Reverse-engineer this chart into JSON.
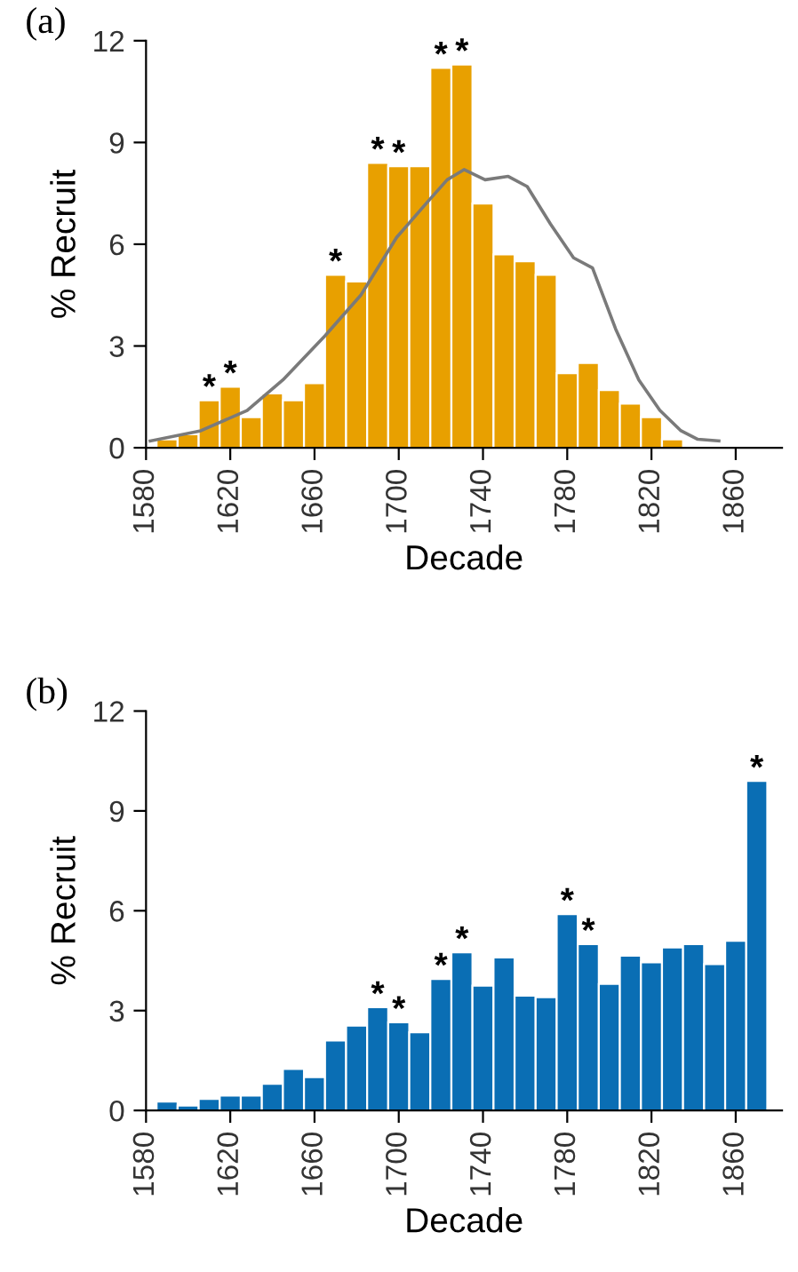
{
  "chart_data": [
    {
      "type": "histogram",
      "title": "(a)",
      "xlabel": "Decade",
      "ylabel": "% Recruit",
      "bins": [
        1585,
        1595,
        1605,
        1615,
        1625,
        1635,
        1645,
        1655,
        1665,
        1675,
        1685,
        1695,
        1705,
        1715,
        1725,
        1735,
        1745,
        1755,
        1765,
        1775,
        1785,
        1795,
        1805,
        1815,
        1825,
        1835
      ],
      "series": [
        {
          "color": "#e8a000",
          "values": [
            0.25,
            0.4,
            1.4,
            1.8,
            0.9,
            1.6,
            1.4,
            1.9,
            5.1,
            4.9,
            8.4,
            8.3,
            8.3,
            11.2,
            11.3,
            7.2,
            5.7,
            5.5,
            5.1,
            2.2,
            2.5,
            1.7,
            1.3,
            0.9,
            0.25
          ]
        },
        {
          "type": "line",
          "color": "#7a7a7a",
          "x": [
            1582,
            1606,
            1628,
            1645,
            1665,
            1682,
            1699,
            1713,
            1723,
            1731,
            1741,
            1752,
            1761,
            1772,
            1783,
            1792,
            1803,
            1814,
            1824,
            1834,
            1842,
            1852
          ],
          "values": [
            0.2,
            0.5,
            1.1,
            2.0,
            3.3,
            4.5,
            6.2,
            7.2,
            7.9,
            8.2,
            7.9,
            8.0,
            7.7,
            6.6,
            5.6,
            5.3,
            3.5,
            2.0,
            1.1,
            0.5,
            0.25,
            0.2
          ]
        }
      ],
      "xlim": [
        1580,
        1882
      ],
      "xticks": [
        1580,
        1620,
        1660,
        1700,
        1740,
        1780,
        1820,
        1860
      ],
      "ylim": [
        0,
        12
      ],
      "yticks": [
        0,
        3,
        6,
        9,
        12
      ],
      "grid": false,
      "legend": false,
      "annotations": [
        {
          "text": "*",
          "x": 1610,
          "y": 1.4
        },
        {
          "text": "*",
          "x": 1620,
          "y": 1.8
        },
        {
          "text": "*",
          "x": 1670,
          "y": 5.1
        },
        {
          "text": "*",
          "x": 1690,
          "y": 8.4
        },
        {
          "text": "*",
          "x": 1700,
          "y": 8.3
        },
        {
          "text": "*",
          "x": 1720,
          "y": 11.2
        },
        {
          "text": "*",
          "x": 1730,
          "y": 11.3
        }
      ]
    },
    {
      "type": "histogram",
      "title": "(b)",
      "xlabel": "Decade",
      "ylabel": "% Recruit",
      "bins": [
        1585,
        1595,
        1605,
        1615,
        1625,
        1635,
        1645,
        1655,
        1665,
        1675,
        1685,
        1695,
        1705,
        1715,
        1725,
        1735,
        1745,
        1755,
        1765,
        1775,
        1785,
        1795,
        1805,
        1815,
        1825,
        1835,
        1845,
        1855,
        1865,
        1875
      ],
      "series": [
        {
          "color": "#0a6eb4",
          "values": [
            0.27,
            0.15,
            0.35,
            0.45,
            0.45,
            0.8,
            1.25,
            1.0,
            2.1,
            2.55,
            3.1,
            2.65,
            2.35,
            3.95,
            4.75,
            3.75,
            4.6,
            3.45,
            3.4,
            5.9,
            5.0,
            3.8,
            4.65,
            4.45,
            4.9,
            5.0,
            4.4,
            5.1,
            9.9
          ]
        }
      ],
      "xlim": [
        1580,
        1882
      ],
      "xticks": [
        1580,
        1620,
        1660,
        1700,
        1740,
        1780,
        1820,
        1860
      ],
      "ylim": [
        0,
        12
      ],
      "yticks": [
        0,
        3,
        6,
        9,
        12
      ],
      "grid": false,
      "legend": false,
      "annotations": [
        {
          "text": "*",
          "x": 1690,
          "y": 3.1
        },
        {
          "text": "*",
          "x": 1700,
          "y": 2.65
        },
        {
          "text": "*",
          "x": 1720,
          "y": 3.95
        },
        {
          "text": "*",
          "x": 1730,
          "y": 4.75
        },
        {
          "text": "*",
          "x": 1780,
          "y": 5.9
        },
        {
          "text": "*",
          "x": 1790,
          "y": 5.0
        },
        {
          "text": "*",
          "x": 1870,
          "y": 9.9
        }
      ]
    }
  ]
}
